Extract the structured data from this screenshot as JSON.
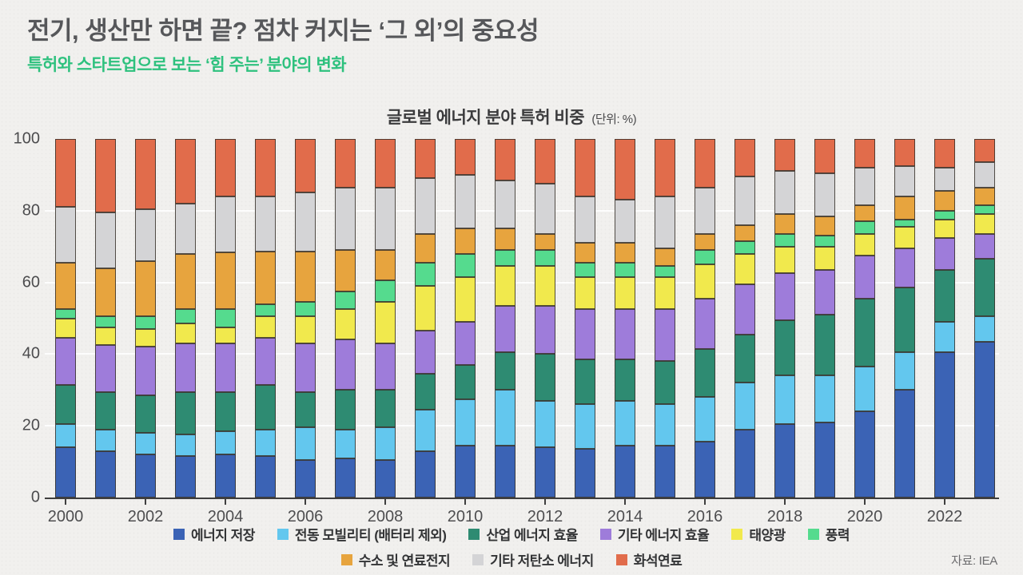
{
  "page": {
    "title": "전기, 생산만 하면 끝? 점차 커지는 ‘그 외’의 중요성",
    "subtitle": "특허와 스타트업으로 보는 ‘힘 주는’ 분야의 변화",
    "source": "자료: IEA"
  },
  "chart_data": {
    "type": "bar",
    "stacked": true,
    "percent": true,
    "title": "글로벌 에너지 분야 특허 비중",
    "unit_label": "(단위: %)",
    "ylabel": "",
    "xlabel": "",
    "ylim": [
      0,
      100
    ],
    "yticks": [
      0,
      20,
      40,
      60,
      80,
      100
    ],
    "grid": "horizontal",
    "legend_position": "bottom",
    "categories": [
      "2000",
      "2001",
      "2002",
      "2003",
      "2004",
      "2005",
      "2006",
      "2007",
      "2008",
      "2009",
      "2010",
      "2011",
      "2012",
      "2013",
      "2014",
      "2015",
      "2016",
      "2017",
      "2018",
      "2019",
      "2020",
      "2021",
      "2022",
      "2023"
    ],
    "xtick_years": [
      "2000",
      "2002",
      "2004",
      "2006",
      "2008",
      "2010",
      "2012",
      "2014",
      "2016",
      "2018",
      "2020",
      "2022"
    ],
    "legend_rows": [
      [
        0,
        1,
        2,
        3,
        4,
        5
      ],
      [
        6,
        7,
        8
      ]
    ],
    "series": [
      {
        "name": "에너지 저장",
        "color": "#3b63b5",
        "values": [
          14,
          13,
          12,
          11.5,
          12,
          11.5,
          10.5,
          11,
          10.5,
          13,
          14.5,
          14.5,
          14,
          13.5,
          14.5,
          14.5,
          15.5,
          19,
          20.5,
          21,
          24,
          30,
          40.5,
          43.5
        ]
      },
      {
        "name": "전동 모빌리티 (배터리 제외)",
        "color": "#63c7ee",
        "values": [
          6.5,
          6,
          6,
          6,
          6.5,
          7.5,
          9,
          8,
          9,
          11.5,
          13,
          15.5,
          13,
          12.5,
          12.5,
          11.5,
          12.5,
          13,
          13.5,
          13,
          12.5,
          10.5,
          8.5,
          7
        ]
      },
      {
        "name": "산업 에너지 효율",
        "color": "#2e8b72",
        "values": [
          11,
          10.5,
          10.5,
          12,
          11,
          12.5,
          10,
          11,
          10.5,
          10,
          9.5,
          10.5,
          13,
          12.5,
          11.5,
          12,
          13.5,
          13.5,
          15.5,
          17,
          19,
          18,
          14.5,
          16
        ]
      },
      {
        "name": "기타 에너지 효율",
        "color": "#9e7cda",
        "values": [
          13,
          13,
          13.5,
          13.5,
          13.5,
          13,
          13.5,
          14,
          13,
          12,
          12,
          13,
          13.5,
          14,
          14,
          14.5,
          14,
          14,
          13,
          12.5,
          12,
          11,
          9,
          7
        ]
      },
      {
        "name": "태양광",
        "color": "#f1e94d",
        "values": [
          5.5,
          5,
          5,
          5.5,
          4.5,
          6,
          7.5,
          8.5,
          11.5,
          12.5,
          12.5,
          11,
          11,
          9,
          9,
          9,
          9.5,
          8.5,
          7.5,
          6.5,
          6,
          6,
          5,
          5.5
        ]
      },
      {
        "name": "풍력",
        "color": "#55db8e",
        "values": [
          2.5,
          3,
          3.5,
          4,
          5,
          3.5,
          4,
          5,
          6,
          6.5,
          6.5,
          4.5,
          4.5,
          4,
          4,
          3,
          4,
          3.5,
          3.5,
          3,
          3.5,
          2,
          2.5,
          2.5
        ]
      },
      {
        "name": "수소 및 연료전지",
        "color": "#e7a43e",
        "values": [
          13,
          13.5,
          15.5,
          15.5,
          16,
          14.5,
          14,
          11.5,
          8.5,
          8,
          7,
          6,
          4.5,
          5.5,
          5.5,
          5,
          4.5,
          4.5,
          5.5,
          5.5,
          4.5,
          6.5,
          5.5,
          5
        ]
      },
      {
        "name": "기타 저탄소 에너지",
        "color": "#d4d4d6",
        "values": [
          15.5,
          15.5,
          14.5,
          14,
          15.5,
          15.5,
          16.5,
          17.5,
          17.5,
          15.5,
          15,
          13.5,
          14,
          13,
          12,
          14.5,
          13,
          13.5,
          12,
          12,
          10.5,
          8.5,
          6.5,
          7
        ]
      },
      {
        "name": "화석연료",
        "color": "#e16c4b",
        "values": [
          19,
          20.5,
          19.5,
          18,
          16,
          16,
          15,
          13.5,
          13.5,
          11,
          10,
          11.5,
          12.5,
          16,
          17,
          16,
          13.5,
          10.5,
          9,
          9.5,
          8,
          7.5,
          8,
          6.5
        ]
      }
    ]
  }
}
